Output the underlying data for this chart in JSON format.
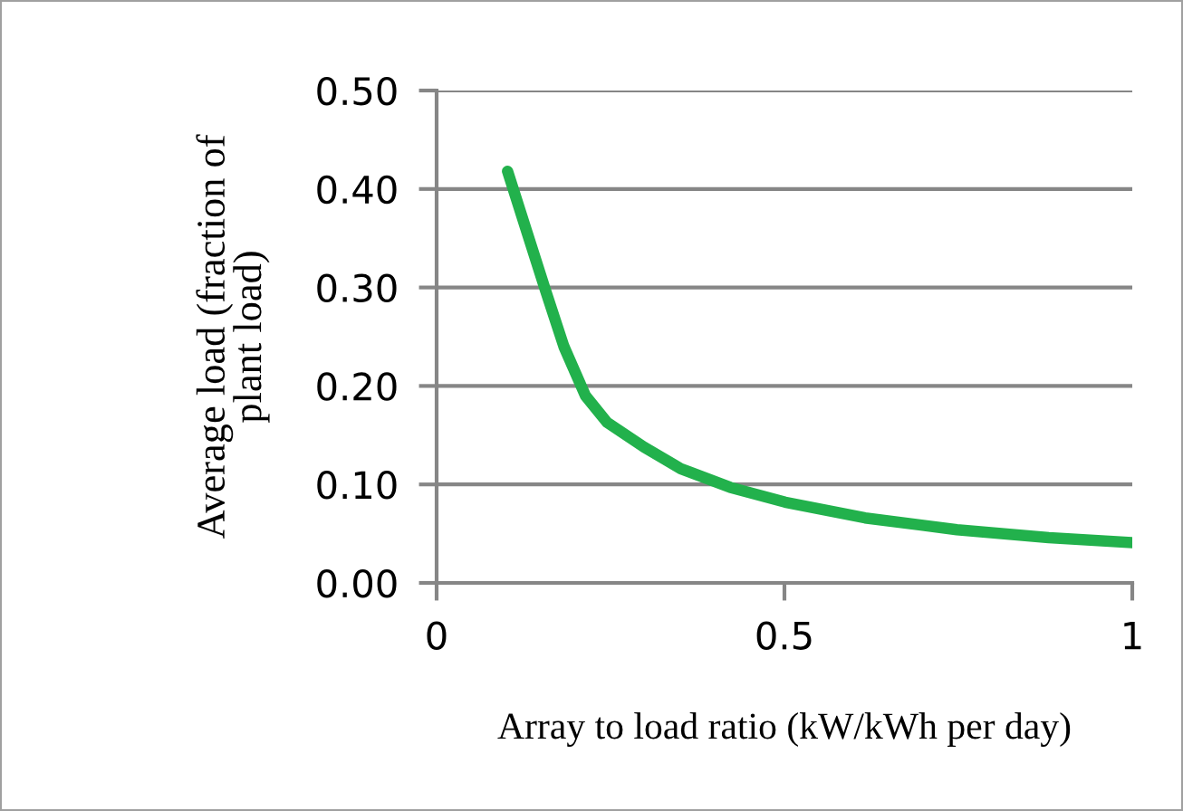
{
  "chart_data": {
    "type": "line",
    "xlabel": "Array to load ratio (kW/kWh per day)",
    "ylabel": "Average load (fraction of\nplant load)",
    "series": [
      {
        "color": "#22b14c",
        "x": [
          0.102,
          0.157,
          0.183,
          0.214,
          0.245,
          0.298,
          0.351,
          0.422,
          0.501,
          0.616,
          0.748,
          0.88,
          1.0
        ],
        "values": [
          0.418,
          0.296,
          0.24,
          0.19,
          0.163,
          0.138,
          0.116,
          0.097,
          0.082,
          0.066,
          0.054,
          0.046,
          0.041
        ]
      }
    ],
    "xlim": [
      0,
      1
    ],
    "xticks": [
      0,
      0.5,
      1
    ],
    "ylim": [
      0,
      0.5
    ],
    "yticks": [
      {
        "value": 0,
        "label": "0.00"
      },
      {
        "value": 0.1,
        "label": "0.10"
      },
      {
        "value": 0.2,
        "label": "0.20"
      },
      {
        "value": 0.3,
        "label": "0.30"
      },
      {
        "value": 0.4,
        "label": "0.40"
      },
      {
        "value": 0.5,
        "label": "0.50"
      }
    ],
    "grid": "y",
    "marker": "none",
    "line_style": "solid"
  }
}
